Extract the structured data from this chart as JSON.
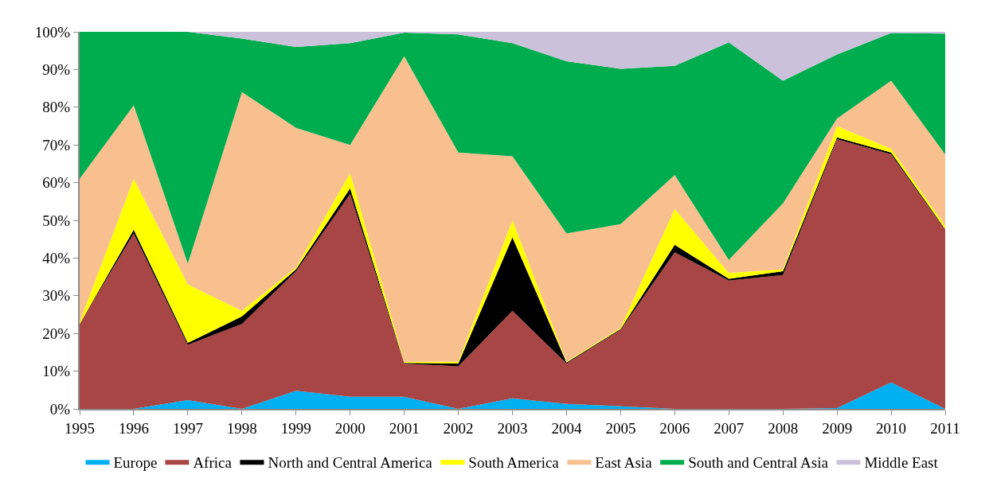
{
  "chart_data": {
    "type": "area",
    "stacked": true,
    "x": [
      1995,
      1996,
      1997,
      1998,
      1999,
      2000,
      2001,
      2002,
      2003,
      2004,
      2005,
      2006,
      2007,
      2008,
      2009,
      2010,
      2011
    ],
    "series": [
      {
        "name": "Europe",
        "color": "#00b0f0",
        "values": [
          0,
          0,
          2.3,
          0,
          4.8,
          3.2,
          3.2,
          0,
          2.8,
          1.3,
          0.7,
          0,
          0,
          0,
          0.2,
          7,
          0
        ]
      },
      {
        "name": "Africa",
        "color": "#a84545",
        "values": [
          22.5,
          46.5,
          14.7,
          22.5,
          31.7,
          53.8,
          8.8,
          11.3,
          23.2,
          10.7,
          20.3,
          41.5,
          34,
          35.5,
          71.3,
          60.5,
          47.5
        ]
      },
      {
        "name": "North and Central America",
        "color": "#000000",
        "values": [
          0,
          1,
          0.5,
          2,
          0.5,
          1.5,
          0.2,
          0.7,
          19.5,
          0.3,
          0.2,
          2,
          0.5,
          1,
          0.5,
          0.5,
          0.2
        ]
      },
      {
        "name": "South America",
        "color": "#ffff00",
        "values": [
          0.5,
          13.5,
          15.5,
          1.5,
          0.5,
          4,
          0.3,
          0.5,
          4.5,
          0.2,
          0.3,
          9.5,
          1.5,
          0.5,
          3,
          1,
          0.8
        ]
      },
      {
        "name": "East Asia",
        "color": "#f8c08f",
        "values": [
          38,
          19.5,
          5.5,
          58,
          37,
          7.5,
          81,
          55.5,
          17,
          34,
          27.5,
          9,
          3.5,
          17.5,
          2,
          18,
          19
        ]
      },
      {
        "name": "South and Central Asia",
        "color": "#00ad4e",
        "values": [
          39,
          19.5,
          61.5,
          14.2,
          21.5,
          27,
          6.3,
          31.3,
          30,
          45.7,
          41.2,
          29,
          57.7,
          32.5,
          17,
          12.7,
          32
        ]
      },
      {
        "name": "Middle East",
        "color": "#ccc1da",
        "values": [
          0,
          0,
          0,
          1.8,
          4,
          3,
          0.2,
          0.7,
          3,
          7.8,
          9.8,
          9,
          2.8,
          13,
          6,
          0.3,
          0.5
        ]
      }
    ],
    "xlim": [
      1995,
      2011
    ],
    "xticks": [
      1995,
      1996,
      1997,
      1998,
      1999,
      2000,
      2001,
      2002,
      2003,
      2004,
      2005,
      2006,
      2007,
      2008,
      2009,
      2010,
      2011
    ],
    "ylim": [
      0,
      100
    ],
    "yticks": [
      {
        "value": 0,
        "label": "0%"
      },
      {
        "value": 10,
        "label": "10%"
      },
      {
        "value": 20,
        "label": "20%"
      },
      {
        "value": 30,
        "label": "30%"
      },
      {
        "value": 40,
        "label": "40%"
      },
      {
        "value": 50,
        "label": "50%"
      },
      {
        "value": 60,
        "label": "60%"
      },
      {
        "value": 70,
        "label": "70%"
      },
      {
        "value": 80,
        "label": "80%"
      },
      {
        "value": 90,
        "label": "90%"
      },
      {
        "value": 100,
        "label": "100%"
      }
    ],
    "legend": "bottom"
  }
}
